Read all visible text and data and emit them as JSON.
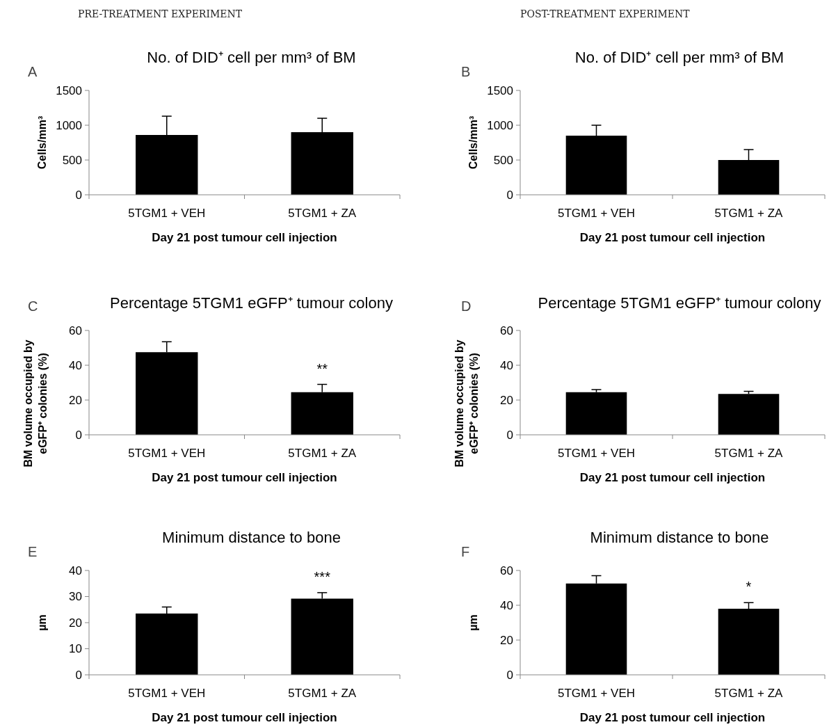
{
  "chart_data": [
    {
      "type": "bar",
      "title": "No. of DID⁺  cell per mm³ of BM",
      "ylabel": "Cells/mm³",
      "xlabel": "Day 21 post tumour cell injection",
      "annotations": [
        "A",
        "PRE-TREATMENT EXPERIMENT"
      ],
      "categories": [
        "5TGM1 + VEH",
        "5TGM1 + ZA"
      ],
      "values": [
        860,
        900
      ],
      "errors": [
        [
          860,
          1130
        ],
        [
          900,
          1100
        ]
      ],
      "color": "#000000",
      "ylim": [
        0,
        1500
      ],
      "yticks": [
        0,
        500,
        1000,
        1500
      ],
      "grid": false
    },
    {
      "type": "bar",
      "title": "No. of DID⁺ cell  per mm³ of BM",
      "ylabel": "Cells/mm³",
      "xlabel": "Day 21 post tumour cell injection",
      "annotations": [
        "B",
        "POST-TREATMENT EXPERIMENT"
      ],
      "categories": [
        "5TGM1 + VEH",
        "5TGM1 + ZA"
      ],
      "values": [
        850,
        500
      ],
      "errors": [
        [
          850,
          1000
        ],
        [
          500,
          650
        ]
      ],
      "color": "#000000",
      "ylim": [
        0,
        1500
      ],
      "yticks": [
        0,
        500,
        1000,
        1500
      ],
      "grid": false
    },
    {
      "type": "bar",
      "title": "Percentage 5TGM1 eGFP⁺ tumour colony",
      "ylabel": "BM volume occupied by eGFP⁺ colonies (%)",
      "xlabel": "Day 21 post tumour cell injection",
      "annotations": [
        "C",
        {
          "text": "**",
          "x": "5TGM1 + ZA",
          "y": 29
        }
      ],
      "categories": [
        "5TGM1 + VEH",
        "5TGM1 + ZA"
      ],
      "values": [
        47.5,
        24.5
      ],
      "errors": [
        [
          47.5,
          53.5
        ],
        [
          24.5,
          29
        ]
      ],
      "color": "#000000",
      "ylim": [
        0,
        60
      ],
      "yticks": [
        0,
        20,
        40,
        60
      ],
      "grid": false
    },
    {
      "type": "bar",
      "title": "Percentage 5TGM1 eGFP⁺ tumour colony",
      "ylabel": "BM volume occupied by eGFP⁺ colonies (%)",
      "xlabel": "Day 21 post tumour cell injection",
      "annotations": [
        "D"
      ],
      "categories": [
        "5TGM1 + VEH",
        "5TGM1 + ZA"
      ],
      "values": [
        24.5,
        23.5
      ],
      "errors": [
        [
          24.5,
          26
        ],
        [
          23.5,
          25
        ]
      ],
      "color": "#000000",
      "ylim": [
        0,
        60
      ],
      "yticks": [
        0,
        20,
        40,
        60
      ],
      "grid": false
    },
    {
      "type": "bar",
      "title": "Minimum distance to bone",
      "ylabel": "µm",
      "xlabel": "Day 21 post tumour cell injection",
      "annotations": [
        "E",
        {
          "text": "***",
          "x": "5TGM1 + ZA",
          "y": 31.5
        }
      ],
      "categories": [
        "5TGM1 + VEH",
        "5TGM1 + ZA"
      ],
      "values": [
        23.5,
        29.2
      ],
      "errors": [
        [
          23.5,
          26
        ],
        [
          29.2,
          31.5
        ]
      ],
      "color": "#000000",
      "ylim": [
        0,
        40
      ],
      "yticks": [
        0,
        10,
        20,
        30,
        40
      ],
      "grid": false
    },
    {
      "type": "bar",
      "title": "Minimum distance to bone",
      "ylabel": "µm",
      "xlabel": "Day 21 post tumour cell injection",
      "annotations": [
        "F",
        {
          "text": "*",
          "x": "5TGM1 + ZA",
          "y": 41.5
        }
      ],
      "categories": [
        "5TGM1 + VEH",
        "5TGM1 + ZA"
      ],
      "values": [
        52.5,
        38
      ],
      "errors": [
        [
          52.5,
          57
        ],
        [
          38,
          41.5
        ]
      ],
      "color": "#000000",
      "ylim": [
        0,
        60
      ],
      "yticks": [
        0,
        20,
        40,
        60
      ],
      "grid": false
    }
  ]
}
